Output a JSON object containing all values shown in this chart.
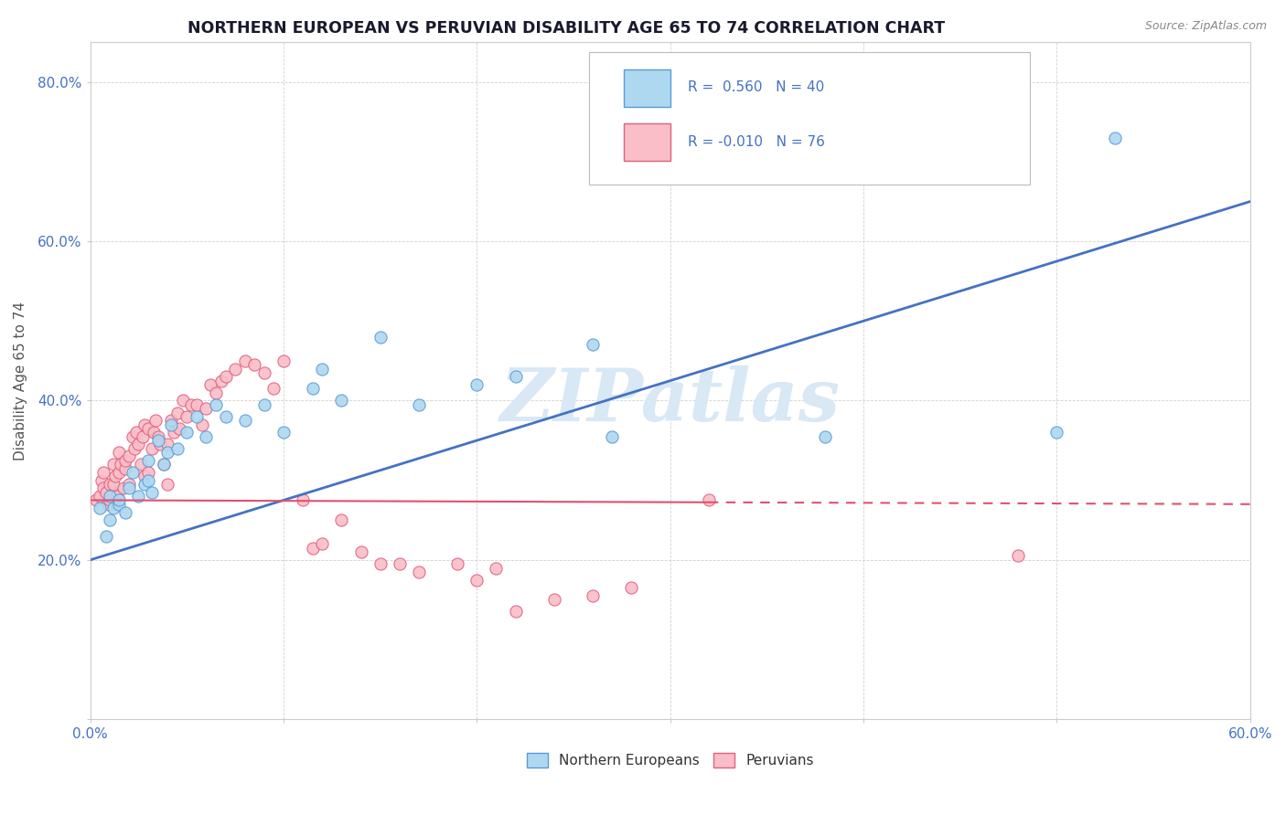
{
  "title": "NORTHERN EUROPEAN VS PERUVIAN DISABILITY AGE 65 TO 74 CORRELATION CHART",
  "source_text": "Source: ZipAtlas.com",
  "ylabel": "Disability Age 65 to 74",
  "xlim": [
    0.0,
    0.6
  ],
  "ylim": [
    0.0,
    0.85
  ],
  "blue_r": 0.56,
  "blue_n": 40,
  "pink_r": -0.01,
  "pink_n": 76,
  "blue_color": "#ADD8F0",
  "pink_color": "#F9BEC7",
  "blue_edge_color": "#5B9BD5",
  "pink_edge_color": "#E06080",
  "blue_line_color": "#4472C4",
  "pink_line_color": "#E05070",
  "watermark_color": "#D8E8F5",
  "watermark": "ZIPatlas",
  "legend_labels": [
    "Northern Europeans",
    "Peruvians"
  ],
  "blue_line_x0": 0.0,
  "blue_line_y0": 0.2,
  "blue_line_x1": 0.6,
  "blue_line_y1": 0.65,
  "pink_line_x0": 0.0,
  "pink_line_y0": 0.275,
  "pink_line_x1": 0.6,
  "pink_line_y1": 0.27,
  "pink_line_dash_start": 0.32,
  "blue_scatter_x": [
    0.005,
    0.008,
    0.01,
    0.01,
    0.012,
    0.015,
    0.015,
    0.018,
    0.02,
    0.022,
    0.025,
    0.028,
    0.03,
    0.03,
    0.032,
    0.035,
    0.038,
    0.04,
    0.042,
    0.045,
    0.05,
    0.055,
    0.06,
    0.065,
    0.07,
    0.08,
    0.09,
    0.1,
    0.115,
    0.12,
    0.13,
    0.15,
    0.17,
    0.2,
    0.22,
    0.26,
    0.27,
    0.38,
    0.5,
    0.53
  ],
  "blue_scatter_y": [
    0.265,
    0.23,
    0.28,
    0.25,
    0.265,
    0.27,
    0.275,
    0.26,
    0.29,
    0.31,
    0.28,
    0.295,
    0.3,
    0.325,
    0.285,
    0.35,
    0.32,
    0.335,
    0.37,
    0.34,
    0.36,
    0.38,
    0.355,
    0.395,
    0.38,
    0.375,
    0.395,
    0.36,
    0.415,
    0.44,
    0.4,
    0.48,
    0.395,
    0.42,
    0.43,
    0.47,
    0.355,
    0.355,
    0.36,
    0.73
  ],
  "pink_scatter_x": [
    0.003,
    0.005,
    0.006,
    0.007,
    0.007,
    0.008,
    0.009,
    0.01,
    0.01,
    0.012,
    0.012,
    0.013,
    0.014,
    0.015,
    0.015,
    0.016,
    0.017,
    0.018,
    0.018,
    0.02,
    0.02,
    0.022,
    0.023,
    0.024,
    0.025,
    0.026,
    0.027,
    0.028,
    0.028,
    0.03,
    0.03,
    0.032,
    0.033,
    0.034,
    0.035,
    0.036,
    0.038,
    0.04,
    0.04,
    0.042,
    0.043,
    0.045,
    0.046,
    0.048,
    0.05,
    0.052,
    0.055,
    0.058,
    0.06,
    0.062,
    0.065,
    0.068,
    0.07,
    0.075,
    0.08,
    0.085,
    0.09,
    0.095,
    0.1,
    0.11,
    0.115,
    0.12,
    0.13,
    0.14,
    0.15,
    0.16,
    0.17,
    0.19,
    0.2,
    0.21,
    0.22,
    0.24,
    0.26,
    0.28,
    0.32,
    0.48
  ],
  "pink_scatter_y": [
    0.275,
    0.28,
    0.3,
    0.29,
    0.31,
    0.285,
    0.27,
    0.295,
    0.275,
    0.32,
    0.295,
    0.305,
    0.28,
    0.335,
    0.31,
    0.32,
    0.29,
    0.315,
    0.325,
    0.33,
    0.295,
    0.355,
    0.34,
    0.36,
    0.345,
    0.32,
    0.355,
    0.37,
    0.305,
    0.365,
    0.31,
    0.34,
    0.36,
    0.375,
    0.355,
    0.345,
    0.32,
    0.345,
    0.295,
    0.375,
    0.36,
    0.385,
    0.365,
    0.4,
    0.38,
    0.395,
    0.395,
    0.37,
    0.39,
    0.42,
    0.41,
    0.425,
    0.43,
    0.44,
    0.45,
    0.445,
    0.435,
    0.415,
    0.45,
    0.275,
    0.215,
    0.22,
    0.25,
    0.21,
    0.195,
    0.195,
    0.185,
    0.195,
    0.175,
    0.19,
    0.135,
    0.15,
    0.155,
    0.165,
    0.275,
    0.205
  ]
}
